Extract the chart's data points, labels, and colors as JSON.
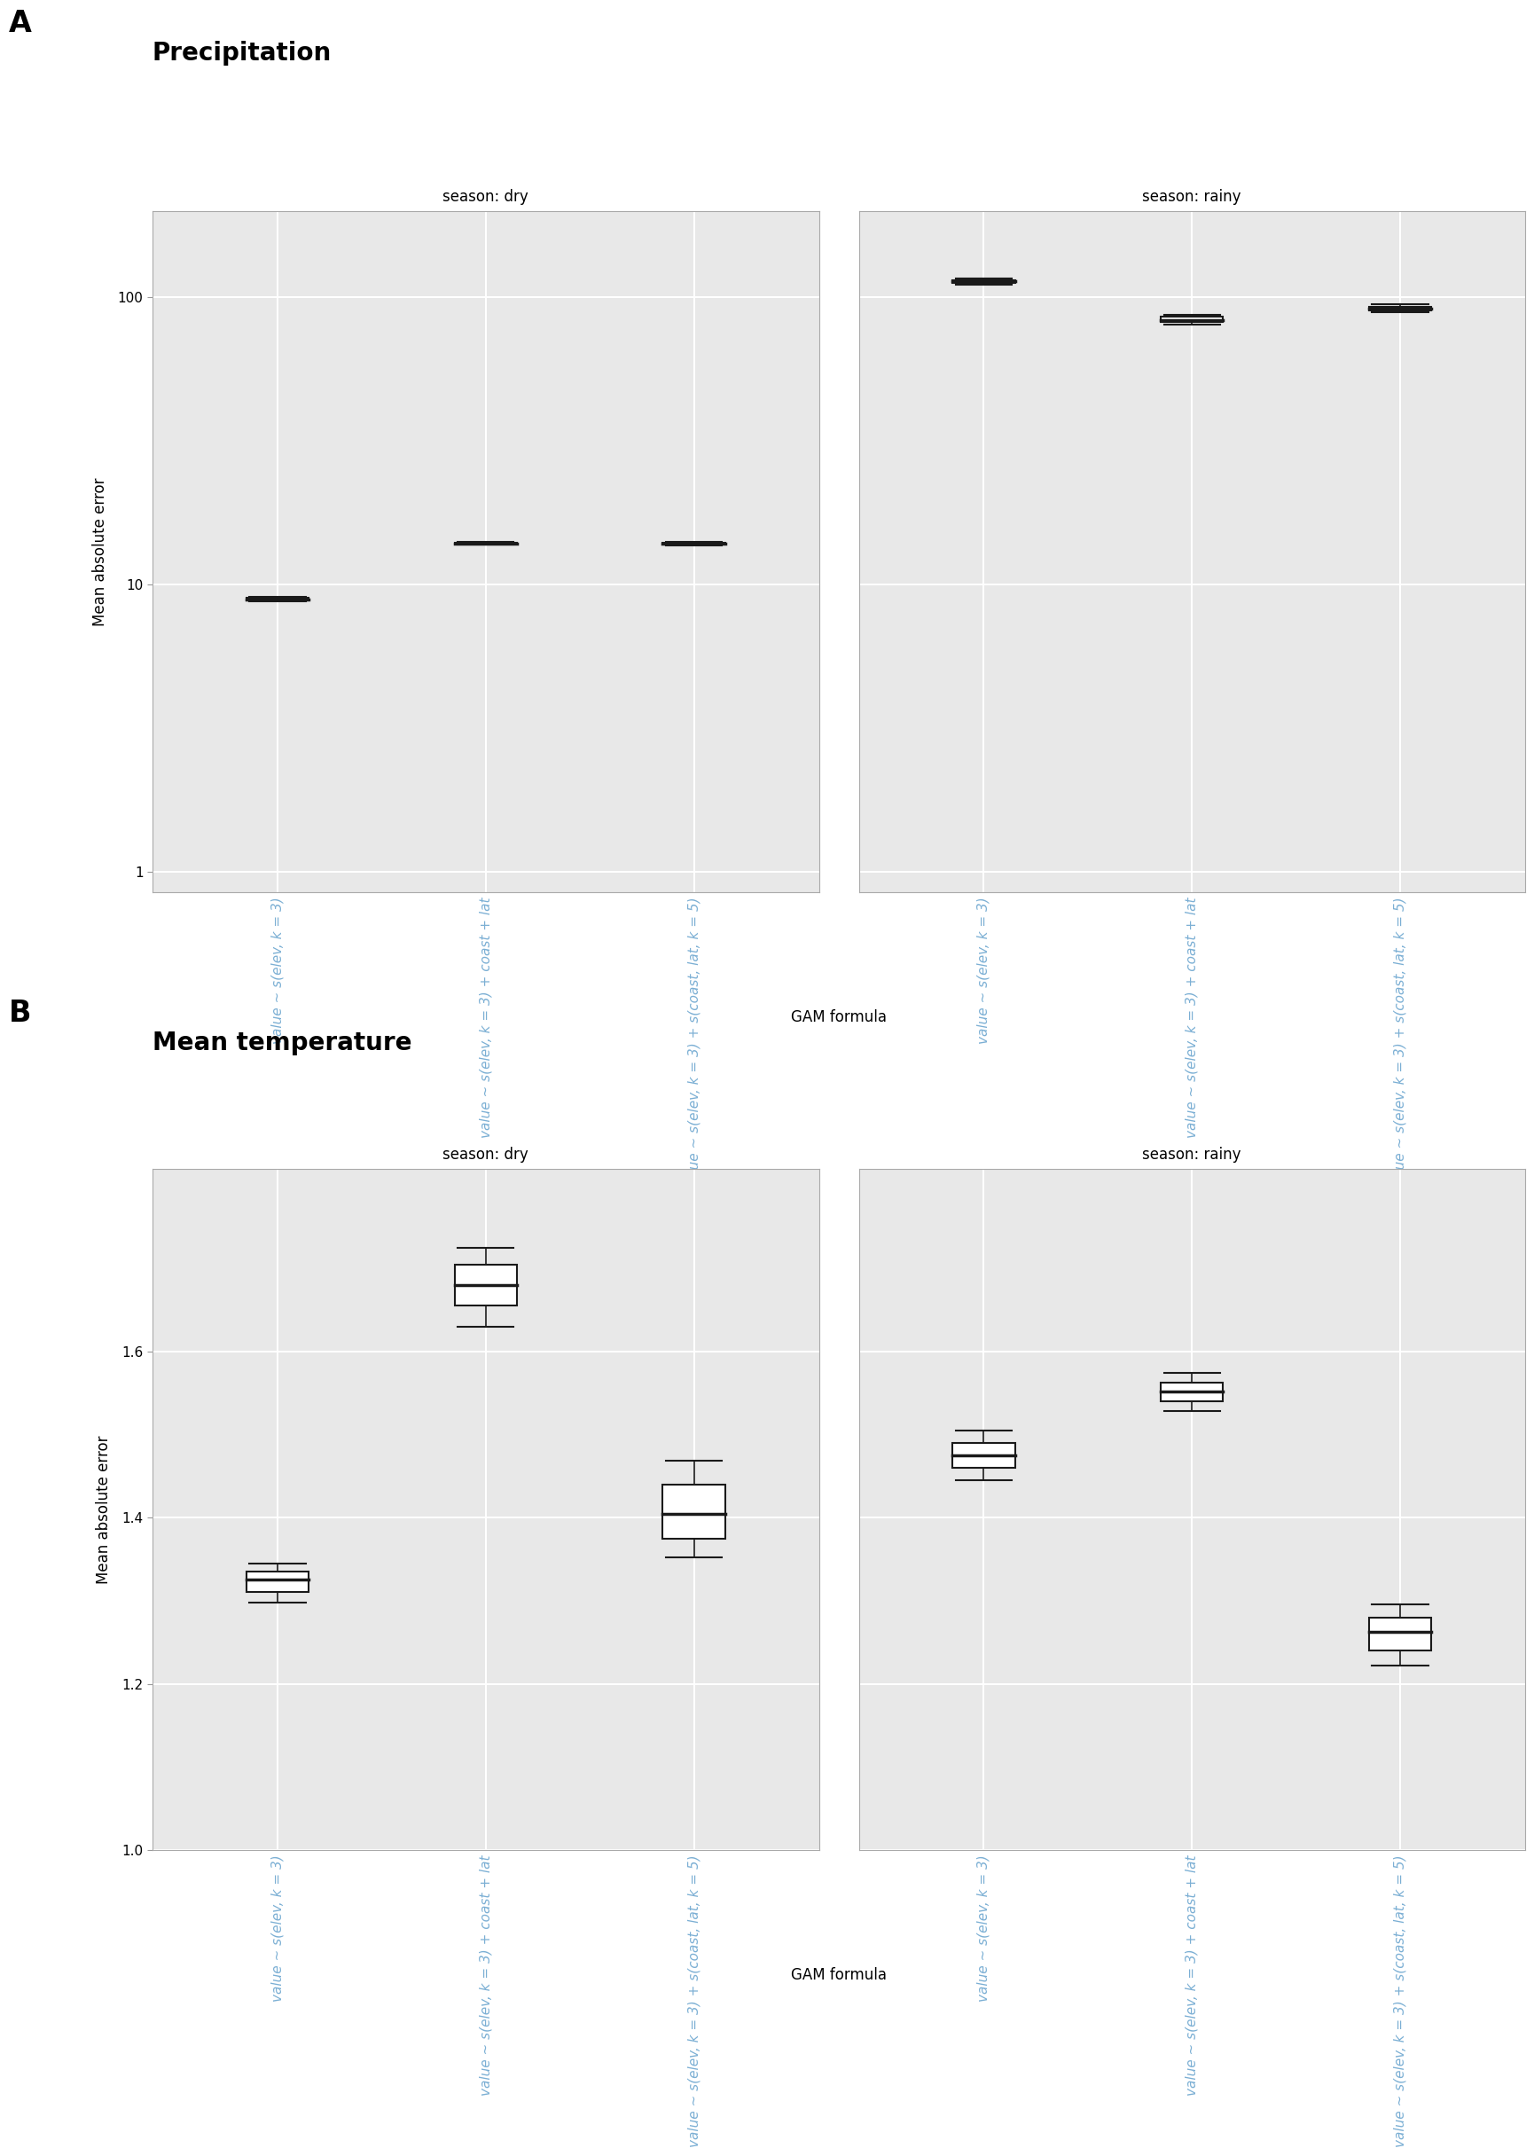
{
  "panel_A_title": "Precipitation",
  "panel_B_title": "Mean temperature",
  "panel_label_A": "A",
  "panel_label_B": "B",
  "xlabel": "GAM formula",
  "ylabel": "Mean absolute error",
  "season_labels": [
    "season: dry",
    "season: rainy"
  ],
  "x_labels": [
    "value ~ s(elev, k = 3)",
    "value ~ s(elev, k = 3) + coast + lat",
    "value ~ s(elev, k = 3) + s(coast, lat, k = 5)"
  ],
  "x_label_color": "#7bafd4",
  "bg_color": "#e8e8e8",
  "grid_color": "#ffffff",
  "box_color": "#1a1a1a",
  "box_facecolor": "#ffffff",
  "precip_dry": {
    "boxes": [
      {
        "q1": 8.82,
        "median": 8.9,
        "q3": 8.98,
        "whislo": 8.72,
        "whishi": 9.08
      },
      {
        "q1": 13.85,
        "median": 13.92,
        "q3": 14.0,
        "whislo": 13.75,
        "whishi": 14.1
      },
      {
        "q1": 13.8,
        "median": 13.9,
        "q3": 14.0,
        "whislo": 13.7,
        "whishi": 14.1
      }
    ]
  },
  "precip_rainy": {
    "boxes": [
      {
        "q1": 112.0,
        "median": 113.5,
        "q3": 115.0,
        "whislo": 110.5,
        "whishi": 116.5
      },
      {
        "q1": 82.0,
        "median": 83.5,
        "q3": 85.5,
        "whislo": 80.5,
        "whishi": 87.0
      },
      {
        "q1": 90.0,
        "median": 91.5,
        "q3": 93.0,
        "whislo": 88.5,
        "whishi": 94.5
      }
    ]
  },
  "temp_dry": {
    "boxes": [
      {
        "q1": 1.31,
        "median": 1.325,
        "q3": 1.335,
        "whislo": 1.298,
        "whishi": 1.345
      },
      {
        "q1": 1.655,
        "median": 1.68,
        "q3": 1.705,
        "whislo": 1.63,
        "whishi": 1.725
      },
      {
        "q1": 1.375,
        "median": 1.405,
        "q3": 1.44,
        "whislo": 1.352,
        "whishi": 1.468
      }
    ]
  },
  "temp_rainy": {
    "boxes": [
      {
        "q1": 1.46,
        "median": 1.475,
        "q3": 1.49,
        "whislo": 1.445,
        "whishi": 1.505
      },
      {
        "q1": 1.54,
        "median": 1.552,
        "q3": 1.562,
        "whislo": 1.528,
        "whishi": 1.574
      },
      {
        "q1": 1.24,
        "median": 1.262,
        "q3": 1.28,
        "whislo": 1.222,
        "whishi": 1.296
      }
    ]
  },
  "precip_ylim": [
    0.85,
    200
  ],
  "temp_ylim": [
    1.0,
    1.82
  ],
  "precip_yticks": [
    1,
    10,
    100
  ],
  "temp_yticks": [
    1.0,
    1.2,
    1.4,
    1.6
  ]
}
